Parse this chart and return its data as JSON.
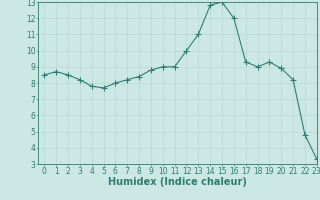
{
  "x": [
    0,
    1,
    2,
    3,
    4,
    5,
    6,
    7,
    8,
    9,
    10,
    11,
    12,
    13,
    14,
    15,
    16,
    17,
    18,
    19,
    20,
    21,
    22,
    23
  ],
  "y": [
    8.5,
    8.7,
    8.5,
    8.2,
    7.8,
    7.7,
    8.0,
    8.2,
    8.4,
    8.8,
    9.0,
    9.0,
    10.0,
    11.0,
    12.8,
    13.0,
    12.0,
    9.3,
    9.0,
    9.3,
    8.9,
    8.2,
    4.8,
    3.3
  ],
  "line_color": "#2e7d6e",
  "marker": "+",
  "marker_size": 4,
  "bg_color": "#cce8e5",
  "grid_color": "#b8d8d4",
  "xlabel": "Humidex (Indice chaleur)",
  "ylim": [
    3,
    13
  ],
  "xlim": [
    -0.5,
    23
  ],
  "yticks": [
    3,
    4,
    5,
    6,
    7,
    8,
    9,
    10,
    11,
    12,
    13
  ],
  "xticks": [
    0,
    1,
    2,
    3,
    4,
    5,
    6,
    7,
    8,
    9,
    10,
    11,
    12,
    13,
    14,
    15,
    16,
    17,
    18,
    19,
    20,
    21,
    22,
    23
  ],
  "tick_color": "#2e7d6e",
  "label_fontsize": 7,
  "tick_fontsize": 5.5
}
